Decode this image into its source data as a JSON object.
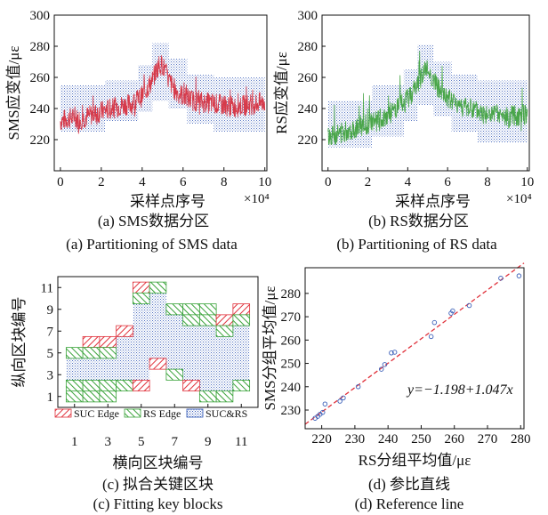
{
  "chart_data": [
    {
      "id": "a",
      "type": "line",
      "caption_cn": "(a) SMS数据分区",
      "caption_en": "(a) Partitioning of SMS data",
      "xlabel": "采样点序号",
      "x_multiplier": "×10⁴",
      "ylabel": "SMS应变值/με",
      "xlim": [
        -0.3,
        10.1
      ],
      "ylim": [
        200,
        300
      ],
      "xticks": [
        "0",
        "2",
        "4",
        "6",
        "8",
        "10"
      ],
      "yticks": [
        "220",
        "240",
        "260",
        "280",
        "300"
      ],
      "line_color": "#d63a4a",
      "band_color": "#3a5fb8",
      "series": [
        {
          "x": [
            0.0,
            0.5,
            1.0,
            1.5,
            2.0,
            2.5,
            3.0,
            3.5,
            4.0,
            4.5,
            4.8,
            5.0,
            5.3,
            5.6,
            6.0,
            6.5,
            7.0,
            7.5,
            8.0,
            8.5,
            9.0,
            9.5,
            10.0
          ],
          "y": [
            232,
            234,
            233,
            236,
            238,
            240,
            242,
            243,
            248,
            258,
            268,
            268,
            258,
            252,
            248,
            245,
            244,
            243,
            242,
            241,
            242,
            243,
            244
          ]
        }
      ],
      "bands": [
        {
          "x_start": 0.0,
          "x_end": 2.2,
          "y_low": 225,
          "y_high": 255
        },
        {
          "x_start": 2.2,
          "x_end": 3.8,
          "y_low": 232,
          "y_high": 258
        },
        {
          "x_start": 3.8,
          "x_end": 4.5,
          "y_low": 238,
          "y_high": 268
        },
        {
          "x_start": 4.5,
          "x_end": 5.3,
          "y_low": 245,
          "y_high": 282
        },
        {
          "x_start": 5.3,
          "x_end": 6.2,
          "y_low": 240,
          "y_high": 272
        },
        {
          "x_start": 6.2,
          "x_end": 7.5,
          "y_low": 230,
          "y_high": 262
        },
        {
          "x_start": 7.5,
          "x_end": 10.0,
          "y_low": 225,
          "y_high": 260
        }
      ]
    },
    {
      "id": "b",
      "type": "line",
      "caption_cn": "(b) RS数据分区",
      "caption_en": "(b) Partitioning of RS data",
      "xlabel": "采样点序号",
      "x_multiplier": "×10⁴",
      "ylabel": "RS应变值/με",
      "xlim": [
        -0.3,
        10.1
      ],
      "ylim": [
        200,
        300
      ],
      "xticks": [
        "0",
        "2",
        "4",
        "6",
        "8",
        "10"
      ],
      "yticks": [
        "220",
        "240",
        "260",
        "280",
        "300"
      ],
      "line_color": "#4aa64a",
      "band_color": "#3a5fb8",
      "series": [
        {
          "x": [
            0.0,
            0.5,
            1.0,
            1.5,
            2.0,
            2.5,
            3.0,
            3.5,
            4.0,
            4.5,
            4.8,
            5.0,
            5.3,
            5.6,
            6.0,
            6.5,
            7.0,
            7.5,
            8.0,
            8.5,
            9.0,
            9.5,
            10.0
          ],
          "y": [
            222,
            224,
            226,
            228,
            230,
            232,
            236,
            240,
            246,
            256,
            264,
            265,
            258,
            252,
            246,
            243,
            240,
            238,
            236,
            235,
            234,
            236,
            236
          ]
        }
      ],
      "bands": [
        {
          "x_start": 0.0,
          "x_end": 2.2,
          "y_low": 215,
          "y_high": 245
        },
        {
          "x_start": 2.2,
          "x_end": 3.8,
          "y_low": 222,
          "y_high": 255
        },
        {
          "x_start": 3.8,
          "x_end": 4.5,
          "y_low": 232,
          "y_high": 265
        },
        {
          "x_start": 4.5,
          "x_end": 5.3,
          "y_low": 242,
          "y_high": 281
        },
        {
          "x_start": 5.3,
          "x_end": 6.2,
          "y_low": 235,
          "y_high": 270
        },
        {
          "x_start": 6.2,
          "x_end": 7.5,
          "y_low": 225,
          "y_high": 262
        },
        {
          "x_start": 7.5,
          "x_end": 10.0,
          "y_low": 218,
          "y_high": 258
        }
      ]
    },
    {
      "id": "c",
      "type": "heatmap",
      "caption_cn": "(c) 拟合关键区块",
      "caption_en": "(c) Fitting key blocks",
      "xlabel": "横向区块编号",
      "ylabel": "纵向区块编号",
      "xlim": [
        0,
        12
      ],
      "ylim": [
        0,
        12
      ],
      "xticks": [
        "1",
        "3",
        "5",
        "7",
        "9",
        "11"
      ],
      "yticks": [
        "1",
        "3",
        "5",
        "7",
        "9",
        "11"
      ],
      "legend_position": "bottom",
      "legend": [
        {
          "key": "suc",
          "label": "SUC Edge",
          "color": "#e0313b"
        },
        {
          "key": "rs",
          "label": "RS Edge",
          "color": "#3aa33a"
        },
        {
          "key": "both",
          "label": "SUC&RS",
          "color": "#2e55b5"
        }
      ],
      "columns": [
        {
          "col": 1,
          "low": 1,
          "high": 5,
          "edges_low": [
            "rs",
            "rs"
          ],
          "edges_high": [
            "rs"
          ]
        },
        {
          "col": 2,
          "low": 1,
          "high": 6,
          "edges_low": [
            "rs",
            "rs"
          ],
          "edges_high": [
            "suc",
            "rs"
          ]
        },
        {
          "col": 3,
          "low": 1,
          "high": 6,
          "edges_low": [
            "rs",
            "rs"
          ],
          "edges_high": [
            "suc",
            "rs"
          ]
        },
        {
          "col": 4,
          "low": 2,
          "high": 7,
          "edges_low": [
            "rs"
          ],
          "edges_high": [
            "suc"
          ]
        },
        {
          "col": 5,
          "low": 2,
          "high": 11,
          "edges_low": [
            "suc"
          ],
          "edges_high": [
            "suc",
            "rs"
          ]
        },
        {
          "col": 6,
          "low": 4,
          "high": 11,
          "edges_low": [
            "suc"
          ],
          "edges_high": [
            "rs"
          ]
        },
        {
          "col": 7,
          "low": 3,
          "high": 9,
          "edges_low": [
            "rs"
          ],
          "edges_high": [
            "rs"
          ]
        },
        {
          "col": 8,
          "low": 2,
          "high": 9,
          "edges_low": [
            "suc"
          ],
          "edges_high": [
            "rs",
            "rs"
          ]
        },
        {
          "col": 9,
          "low": 1,
          "high": 9,
          "edges_low": [
            "rs"
          ],
          "edges_high": [
            "rs",
            "rs"
          ]
        },
        {
          "col": 10,
          "low": 1,
          "high": 8,
          "edges_low": [
            "rs"
          ],
          "edges_high": [
            "suc",
            "rs"
          ]
        },
        {
          "col": 11,
          "low": 2,
          "high": 9,
          "edges_low": [
            "rs"
          ],
          "edges_high": [
            "suc",
            "rs"
          ]
        }
      ]
    },
    {
      "id": "d",
      "type": "scatter",
      "caption_cn": "(d) 参比直线",
      "caption_en": "(d) Reference line",
      "xlabel": "RS分组平均值/με",
      "ylabel": "SMS分组平均值/με",
      "xlim": [
        215,
        281
      ],
      "ylim": [
        222,
        291
      ],
      "xticks": [
        "220",
        "230",
        "240",
        "250",
        "260",
        "270",
        "280"
      ],
      "yticks": [
        "230",
        "240",
        "250",
        "260",
        "270",
        "280"
      ],
      "equation": "y=−1.198+1.047x",
      "fit": {
        "intercept": -1.198,
        "slope": 1.047,
        "color": "#e0313b"
      },
      "point_color": "#3a5fb8",
      "points": [
        {
          "x": 218.0,
          "y": 226.5
        },
        {
          "x": 218.8,
          "y": 227.3
        },
        {
          "x": 219.5,
          "y": 228.2
        },
        {
          "x": 220.3,
          "y": 229.0
        },
        {
          "x": 221.0,
          "y": 232.6
        },
        {
          "x": 225.5,
          "y": 233.8
        },
        {
          "x": 226.5,
          "y": 235.2
        },
        {
          "x": 231.0,
          "y": 240.0
        },
        {
          "x": 238.0,
          "y": 247.5
        },
        {
          "x": 239.0,
          "y": 249.5
        },
        {
          "x": 241.0,
          "y": 254.5
        },
        {
          "x": 242.0,
          "y": 254.8
        },
        {
          "x": 253.0,
          "y": 261.5
        },
        {
          "x": 254.0,
          "y": 267.5
        },
        {
          "x": 259.0,
          "y": 271.5
        },
        {
          "x": 259.5,
          "y": 272.5
        },
        {
          "x": 264.5,
          "y": 274.8
        },
        {
          "x": 274.0,
          "y": 286.5
        },
        {
          "x": 279.5,
          "y": 287.5
        }
      ]
    }
  ]
}
